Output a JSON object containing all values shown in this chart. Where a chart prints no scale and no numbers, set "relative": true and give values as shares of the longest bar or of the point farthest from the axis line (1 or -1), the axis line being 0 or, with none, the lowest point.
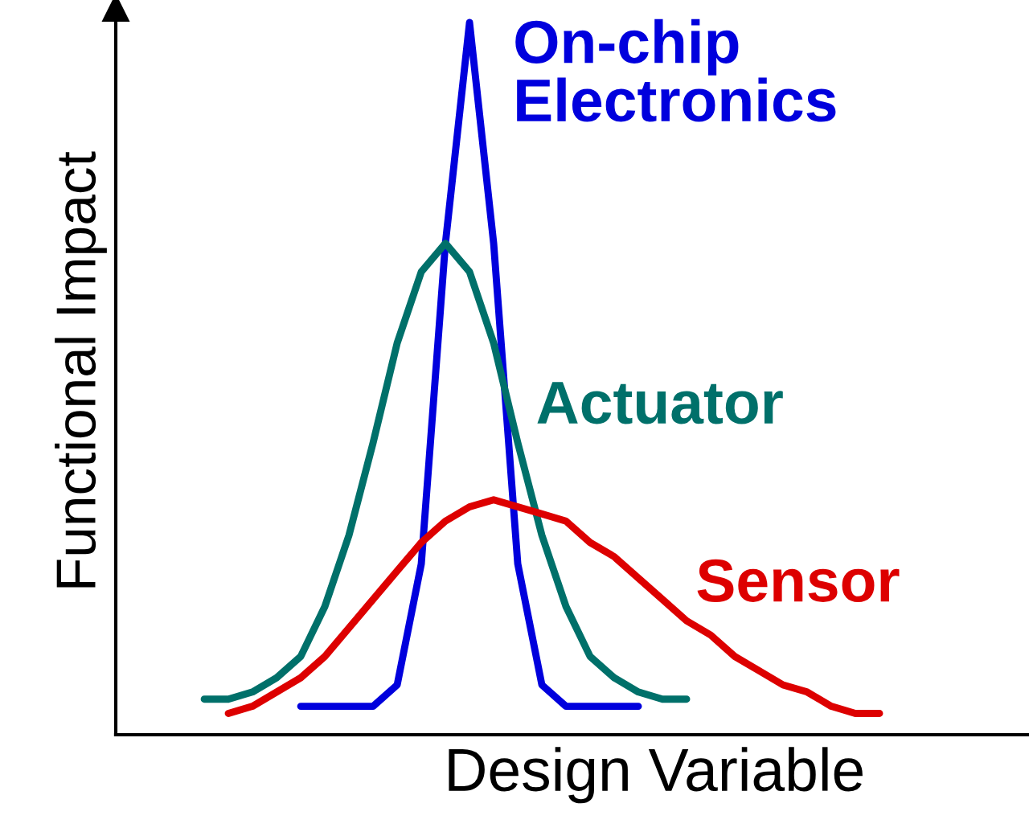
{
  "chart_data": {
    "type": "line",
    "relative": true,
    "xlabel": "Design Variable",
    "ylabel": "Functional Impact",
    "categories": [
      null,
      null,
      null,
      null,
      null,
      null,
      null,
      null,
      null,
      null,
      null,
      null,
      null,
      null,
      null,
      null,
      null,
      null,
      null,
      null,
      null,
      null,
      null,
      null,
      null,
      null,
      null,
      null,
      null,
      null,
      null,
      null,
      null,
      null,
      null,
      null,
      null,
      null
    ],
    "series": [
      {
        "name": "On-chip\nElectronics",
        "color": "#0000dd",
        "values": [
          null,
          null,
          null,
          null,
          null,
          null,
          null,
          0.04,
          0.04,
          0.04,
          0.04,
          0.07,
          0.24,
          0.69,
          1,
          0.69,
          0.24,
          0.07,
          0.04,
          0.04,
          0.04,
          0.04,
          null,
          null,
          null,
          null,
          null,
          null,
          null,
          null,
          null,
          null,
          null,
          null,
          null,
          null,
          null,
          null
        ]
      },
      {
        "name": "Actuator",
        "color": "#00706a",
        "values": [
          null,
          null,
          null,
          0.05,
          0.05,
          0.06,
          0.08,
          0.11,
          0.18,
          0.28,
          0.41,
          0.55,
          0.65,
          0.69,
          0.65,
          0.55,
          0.41,
          0.28,
          0.18,
          0.11,
          0.08,
          0.06,
          0.05,
          0.05,
          null,
          null,
          null,
          null,
          null,
          null,
          null,
          null,
          null,
          null,
          null,
          null,
          null,
          null
        ]
      },
      {
        "name": "Sensor",
        "color": "#dd0000",
        "values": [
          null,
          null,
          null,
          null,
          0.03,
          0.04,
          0.06,
          0.08,
          0.11,
          0.15,
          0.19,
          0.23,
          0.27,
          0.3,
          0.32,
          0.33,
          0.32,
          0.31,
          0.3,
          0.27,
          0.25,
          0.22,
          0.19,
          0.16,
          0.14,
          0.11,
          0.09,
          0.07,
          0.06,
          0.04,
          0.03,
          0.03,
          null,
          null,
          null,
          null,
          null,
          null
        ]
      }
    ],
    "grid": false,
    "legend": false,
    "marker": "none",
    "line_style": "solid"
  }
}
